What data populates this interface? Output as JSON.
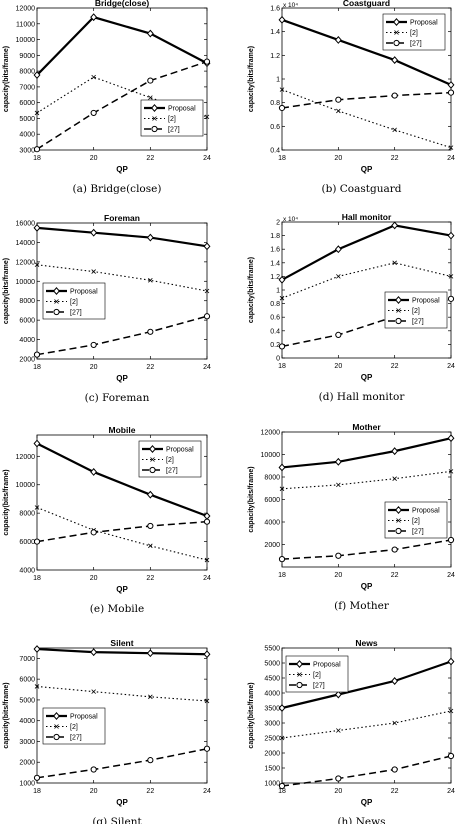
{
  "figure": {
    "panels": [
      {
        "caption": "(a) Bridge(close)"
      },
      {
        "caption": "(b) Coastguard"
      },
      {
        "caption": "(c) Foreman"
      },
      {
        "caption": "(d) Hall monitor"
      },
      {
        "caption": "(e) Mobile"
      },
      {
        "caption": "(f) Mother"
      },
      {
        "caption": "(g) Silent"
      },
      {
        "caption": "(h) News"
      }
    ]
  },
  "legend_labels": [
    "Proposal",
    "[2]",
    "[27]"
  ],
  "series_styles": [
    {
      "dash": "",
      "marker": "diamond",
      "width": 2.2
    },
    {
      "dash": "1.5,2.5",
      "marker": "x",
      "width": 1.1
    },
    {
      "dash": "7,4",
      "marker": "circle",
      "width": 1.5
    }
  ],
  "chart_data": [
    {
      "type": "line",
      "title": "Bridge(close)",
      "xlabel": "QP",
      "ylabel": "capacity(bits/frame)",
      "x": [
        18,
        20,
        22,
        24
      ],
      "ylim": [
        3000,
        12000
      ],
      "yticks": [
        3000,
        4000,
        5000,
        6000,
        7000,
        8000,
        9000,
        10000,
        11000,
        12000
      ],
      "ytick_labels": [
        "3000",
        "4000",
        "5000",
        "6000",
        "7000",
        "8000",
        "9000",
        "10000",
        "11000",
        "12000"
      ],
      "exponent": "",
      "legend": "bottom-right",
      "series": [
        {
          "name": "Proposal",
          "values": [
            7750,
            11420,
            10380,
            8500
          ]
        },
        {
          "name": "[2]",
          "values": [
            5350,
            7620,
            6320,
            5100
          ]
        },
        {
          "name": "[27]",
          "values": [
            3050,
            5350,
            7400,
            8600
          ]
        }
      ]
    },
    {
      "type": "line",
      "title": "Coastguard",
      "xlabel": "QP",
      "ylabel": "capacity(bits/frame)",
      "x": [
        18,
        20,
        22,
        24
      ],
      "ylim": [
        4000,
        16000
      ],
      "yticks": [
        4000,
        6000,
        8000,
        10000,
        12000,
        14000,
        16000
      ],
      "ytick_labels": [
        "0.4",
        "0.6",
        "0.8",
        "1",
        "1.2",
        "1.4",
        "1.6"
      ],
      "exponent": "x 10⁴",
      "legend": "top-right",
      "series": [
        {
          "name": "Proposal",
          "values": [
            15000,
            13300,
            11600,
            9500
          ]
        },
        {
          "name": "[2]",
          "values": [
            9100,
            7300,
            5700,
            4200
          ]
        },
        {
          "name": "[27]",
          "values": [
            7550,
            8250,
            8600,
            8850
          ]
        }
      ]
    },
    {
      "type": "line",
      "title": "Foreman",
      "xlabel": "QP",
      "ylabel": "capacity(bits/frame)",
      "x": [
        18,
        20,
        22,
        24
      ],
      "ylim": [
        2000,
        16000
      ],
      "yticks": [
        2000,
        4000,
        6000,
        8000,
        10000,
        12000,
        14000,
        16000
      ],
      "ytick_labels": [
        "2000",
        "4000",
        "6000",
        "8000",
        "10000",
        "12000",
        "14000",
        "16000"
      ],
      "exponent": "",
      "legend": "middle-left",
      "series": [
        {
          "name": "Proposal",
          "values": [
            15500,
            15000,
            14500,
            13600
          ]
        },
        {
          "name": "[2]",
          "values": [
            11700,
            11000,
            10100,
            9000
          ]
        },
        {
          "name": "[27]",
          "values": [
            2450,
            3450,
            4800,
            6400
          ]
        }
      ]
    },
    {
      "type": "line",
      "title": "Hall monitor",
      "xlabel": "QP",
      "ylabel": "capacity(bits/frame)",
      "x": [
        18,
        20,
        22,
        24
      ],
      "ylim": [
        0,
        20000
      ],
      "yticks": [
        0,
        2000,
        4000,
        6000,
        8000,
        10000,
        12000,
        14000,
        16000,
        18000,
        20000
      ],
      "ytick_labels": [
        "0",
        "0.2",
        "0.4",
        "0.6",
        "0.8",
        "1",
        "1.2",
        "1.4",
        "1.6",
        "1.8",
        "2"
      ],
      "exponent": "x 10⁴",
      "legend": "middle-right",
      "series": [
        {
          "name": "Proposal",
          "values": [
            11500,
            16000,
            19500,
            18000
          ]
        },
        {
          "name": "[2]",
          "values": [
            8800,
            12000,
            14000,
            12000
          ]
        },
        {
          "name": "[27]",
          "values": [
            1700,
            3400,
            6100,
            8700
          ]
        }
      ]
    },
    {
      "type": "line",
      "title": "Mobile",
      "xlabel": "QP",
      "ylabel": "capacity(bits/frame)",
      "x": [
        18,
        20,
        22,
        24
      ],
      "ylim": [
        4000,
        13500
      ],
      "yticks": [
        4000,
        6000,
        8000,
        10000,
        12000
      ],
      "ytick_labels": [
        "4000",
        "6000",
        "8000",
        "10000",
        "12000"
      ],
      "exponent": "",
      "legend": "top-right",
      "series": [
        {
          "name": "Proposal",
          "values": [
            12900,
            10900,
            9300,
            7800
          ]
        },
        {
          "name": "[2]",
          "values": [
            8400,
            6800,
            5700,
            4700
          ]
        },
        {
          "name": "[27]",
          "values": [
            6000,
            6650,
            7100,
            7400
          ]
        }
      ]
    },
    {
      "type": "line",
      "title": "Mother",
      "xlabel": "QP",
      "ylabel": "capacity(bits/frame)",
      "x": [
        18,
        20,
        22,
        24
      ],
      "ylim": [
        0,
        12000
      ],
      "yticks": [
        2000,
        4000,
        6000,
        8000,
        10000,
        12000
      ],
      "ytick_labels": [
        "2000",
        "4000",
        "6000",
        "8000",
        "10000",
        "12000"
      ],
      "exponent": "",
      "legend": "middle-right",
      "series": [
        {
          "name": "Proposal",
          "values": [
            8850,
            9350,
            10300,
            11450
          ]
        },
        {
          "name": "[2]",
          "values": [
            6950,
            7300,
            7850,
            8500
          ]
        },
        {
          "name": "[27]",
          "values": [
            700,
            1000,
            1550,
            2400
          ]
        }
      ]
    },
    {
      "type": "line",
      "title": "Silent",
      "xlabel": "QP",
      "ylabel": "capacity(bits/frame)",
      "x": [
        18,
        20,
        22,
        24
      ],
      "ylim": [
        1000,
        7500
      ],
      "yticks": [
        1000,
        2000,
        3000,
        4000,
        5000,
        6000,
        7000
      ],
      "ytick_labels": [
        "1000",
        "2000",
        "3000",
        "4000",
        "5000",
        "6000",
        "7000"
      ],
      "exponent": "",
      "legend": "middle-left",
      "series": [
        {
          "name": "Proposal",
          "values": [
            7450,
            7300,
            7250,
            7200
          ]
        },
        {
          "name": "[2]",
          "values": [
            5650,
            5400,
            5150,
            4950
          ]
        },
        {
          "name": "[27]",
          "values": [
            1250,
            1650,
            2100,
            2650
          ]
        }
      ]
    },
    {
      "type": "line",
      "title": "News",
      "xlabel": "QP",
      "ylabel": "capacity(bits/frame)",
      "x": [
        18,
        20,
        22,
        24
      ],
      "ylim": [
        1000,
        5500
      ],
      "yticks": [
        1000,
        1500,
        2000,
        2500,
        3000,
        3500,
        4000,
        4500,
        5000,
        5500
      ],
      "ytick_labels": [
        "1000",
        "1500",
        "2000",
        "2500",
        "3000",
        "3500",
        "4000",
        "4500",
        "5000",
        "5500"
      ],
      "exponent": "",
      "legend": "top-left",
      "series": [
        {
          "name": "Proposal",
          "values": [
            3500,
            3950,
            4400,
            5050
          ]
        },
        {
          "name": "[2]",
          "values": [
            2500,
            2750,
            3000,
            3400
          ]
        },
        {
          "name": "[27]",
          "values": [
            900,
            1150,
            1450,
            1900
          ]
        }
      ]
    }
  ]
}
